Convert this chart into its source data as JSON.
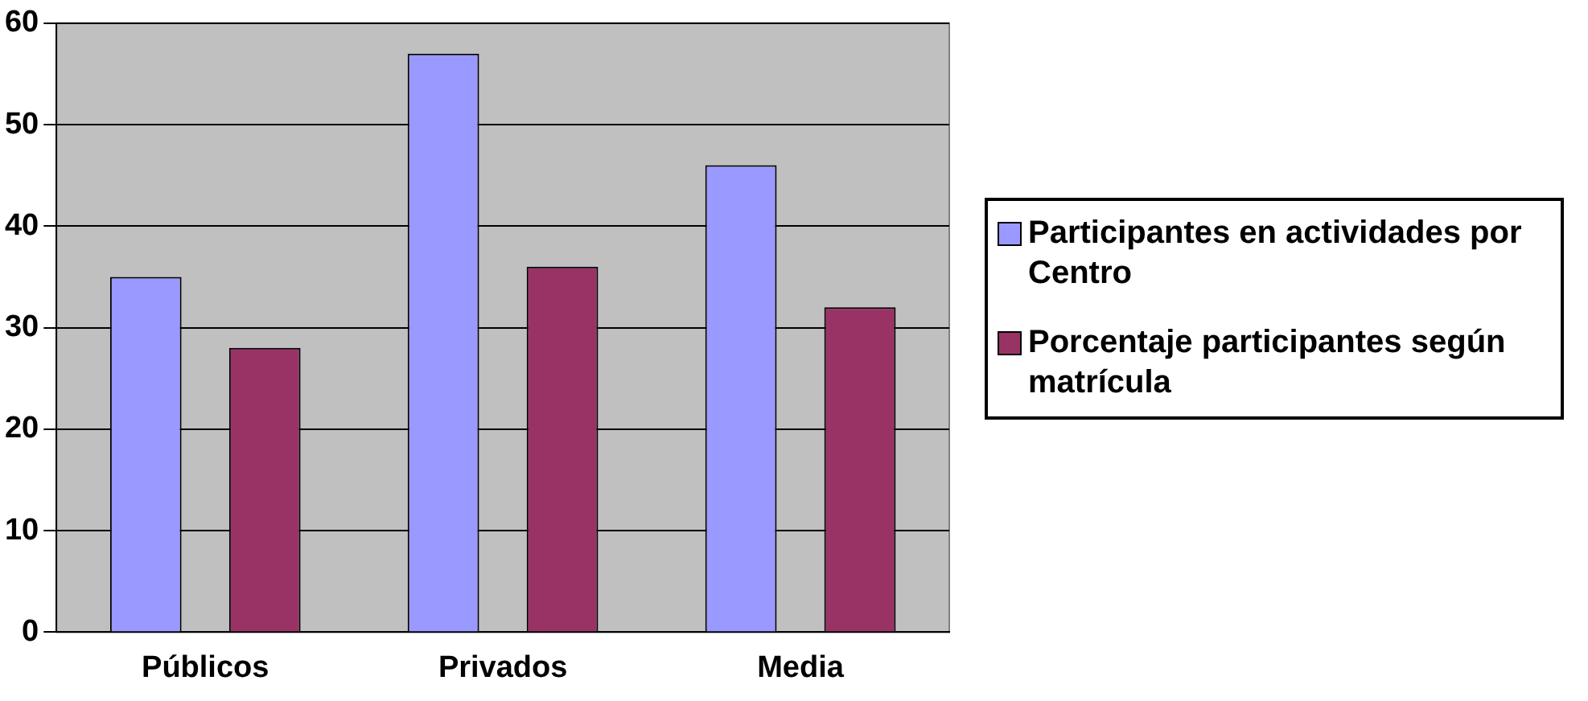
{
  "chart_data": {
    "type": "bar",
    "categories": [
      "Públicos",
      "Privados",
      "Media"
    ],
    "series": [
      {
        "name": "Participantes en actividades por Centro",
        "color": "#9999ff",
        "values": [
          35,
          57,
          46
        ]
      },
      {
        "name": "Porcentaje participantes según matrícula",
        "color": "#993366",
        "values": [
          28,
          36,
          32
        ]
      }
    ],
    "ylim": [
      0,
      60
    ],
    "yticks": [
      0,
      10,
      20,
      30,
      40,
      50,
      60
    ],
    "grid": "y",
    "legend": "right"
  }
}
